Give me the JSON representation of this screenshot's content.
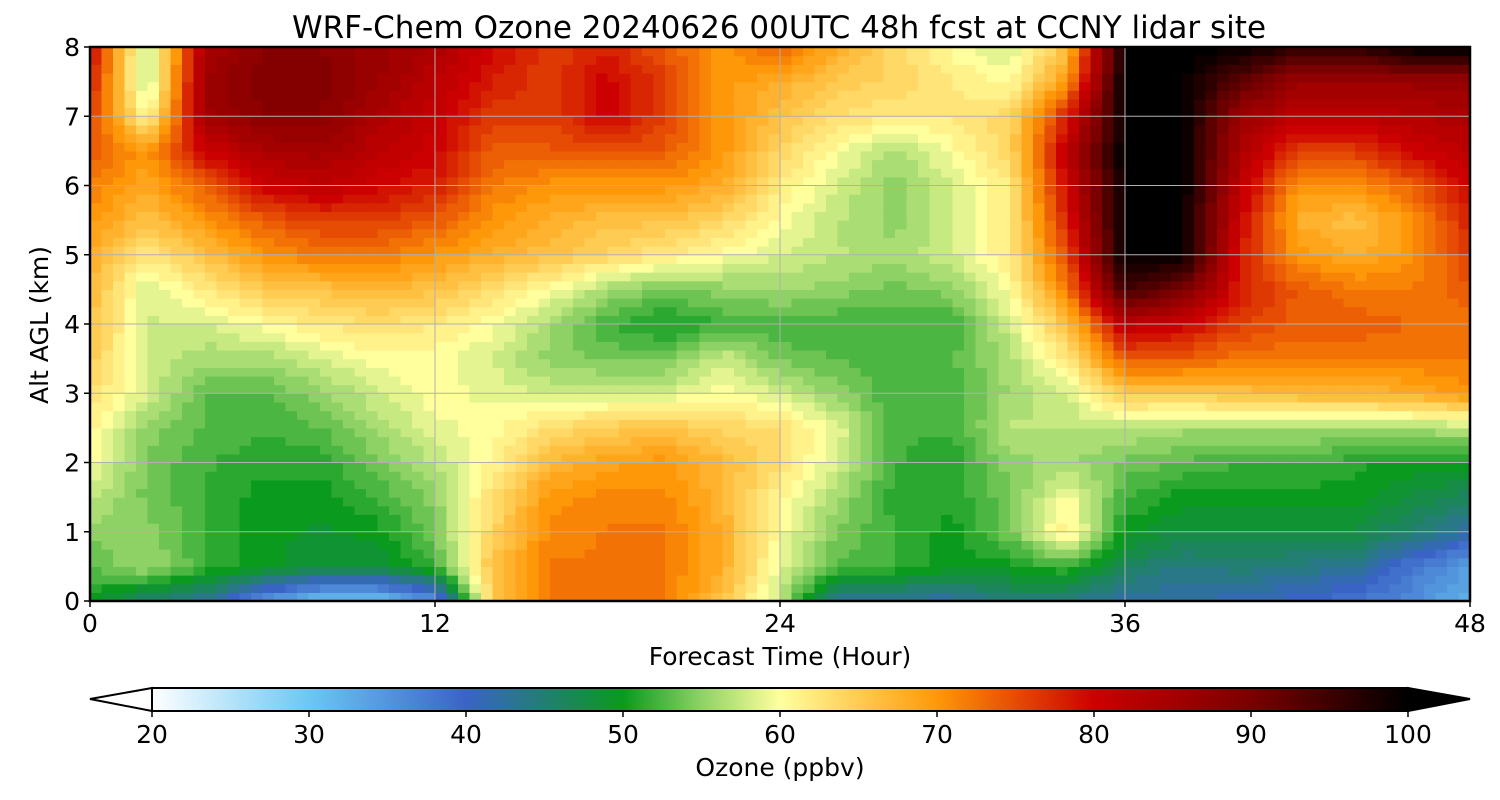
{
  "chart_data": {
    "type": "heatmap",
    "title": "WRF-Chem Ozone  20240626 00UTC 48h fcst at CCNY lidar site",
    "xlabel": "Forecast Time (Hour)",
    "ylabel": "Alt AGL (km)",
    "xlim": [
      0,
      48
    ],
    "ylim": [
      0,
      8
    ],
    "xticks": [
      "0",
      "12",
      "24",
      "36",
      "48"
    ],
    "yticks": [
      "0",
      "1",
      "2",
      "3",
      "4",
      "5",
      "6",
      "7",
      "8"
    ],
    "grid": true,
    "colorbar": {
      "label": "Ozone  (ppbv)",
      "min": 20,
      "max": 100,
      "extend": "both",
      "ticks": [
        "20",
        "30",
        "40",
        "50",
        "60",
        "70",
        "80",
        "90",
        "100"
      ]
    },
    "colormap_stops": [
      {
        "v": 20,
        "color": "#ffffff"
      },
      {
        "v": 30,
        "color": "#6cc7f3"
      },
      {
        "v": 40,
        "color": "#3a63c6"
      },
      {
        "v": 50,
        "color": "#0a9a1e"
      },
      {
        "v": 55,
        "color": "#8ed265"
      },
      {
        "v": 60,
        "color": "#ffff9e"
      },
      {
        "v": 70,
        "color": "#ff9808"
      },
      {
        "v": 80,
        "color": "#cc0000"
      },
      {
        "v": 90,
        "color": "#7a0000"
      },
      {
        "v": 100,
        "color": "#000000"
      }
    ],
    "x_hours": [
      0,
      2,
      4,
      6,
      8,
      10,
      12,
      14,
      16,
      18,
      20,
      22,
      24,
      26,
      28,
      30,
      32,
      34,
      36,
      38,
      40,
      42,
      44,
      46,
      48
    ],
    "z_km": [
      0,
      0.5,
      1,
      1.5,
      2,
      2.5,
      3,
      3.5,
      4,
      4.5,
      5,
      5.5,
      6,
      6.5,
      7,
      7.5,
      8
    ],
    "values": [
      [
        50,
        45,
        43,
        35,
        30,
        30,
        35,
        65,
        72,
        72,
        72,
        66,
        57,
        42,
        42,
        42,
        45,
        44,
        42,
        42,
        41,
        40,
        38,
        36,
        32
      ],
      [
        53,
        56,
        52,
        50,
        48,
        48,
        52,
        66,
        72,
        72,
        72,
        68,
        59,
        53,
        52,
        50,
        50,
        52,
        46,
        44,
        45,
        44,
        43,
        38,
        34
      ],
      [
        55,
        55,
        52,
        50,
        49,
        50,
        54,
        64,
        71,
        72,
        72,
        68,
        60,
        54,
        52,
        50,
        54,
        62,
        50,
        48,
        48,
        48,
        48,
        45,
        42
      ],
      [
        57,
        54,
        52,
        50,
        50,
        52,
        55,
        63,
        70,
        71,
        71,
        67,
        61,
        56,
        51,
        51,
        54,
        60,
        52,
        50,
        50,
        50,
        50,
        48,
        46
      ],
      [
        60,
        54,
        52,
        51,
        51,
        54,
        57,
        61,
        67,
        69,
        70,
        67,
        63,
        58,
        52,
        51,
        55,
        56,
        54,
        53,
        52,
        52,
        51,
        50,
        50
      ],
      [
        61,
        55,
        53,
        52,
        53,
        56,
        59,
        60,
        63,
        65,
        66,
        64,
        63,
        59,
        52,
        52,
        57,
        57,
        57,
        56,
        56,
        56,
        56,
        56,
        57
      ],
      [
        63,
        58,
        53,
        53,
        55,
        58,
        60,
        59,
        58,
        58,
        58,
        60,
        58,
        55,
        52,
        52,
        56,
        58,
        65,
        65,
        66,
        67,
        67,
        68,
        70
      ],
      [
        65,
        58,
        56,
        56,
        58,
        60,
        60,
        58,
        55,
        54,
        54,
        58,
        54,
        53,
        52,
        53,
        56,
        62,
        74,
        74,
        72,
        72,
        72,
        72,
        72
      ],
      [
        66,
        58,
        58,
        60,
        62,
        63,
        62,
        60,
        56,
        52,
        50,
        52,
        52,
        52,
        52,
        52,
        58,
        66,
        82,
        80,
        76,
        74,
        74,
        73,
        72
      ],
      [
        67,
        58,
        62,
        65,
        66,
        67,
        66,
        63,
        60,
        56,
        54,
        55,
        56,
        55,
        54,
        55,
        60,
        72,
        95,
        90,
        78,
        74,
        72,
        72,
        74
      ],
      [
        68,
        62,
        66,
        70,
        72,
        72,
        70,
        68,
        66,
        64,
        62,
        60,
        58,
        57,
        56,
        58,
        62,
        75,
        100,
        100,
        78,
        70,
        68,
        70,
        76
      ],
      [
        70,
        66,
        70,
        74,
        76,
        76,
        74,
        70,
        68,
        66,
        66,
        64,
        60,
        57,
        55,
        58,
        62,
        78,
        100,
        100,
        80,
        68,
        66,
        70,
        78
      ],
      [
        72,
        68,
        74,
        80,
        82,
        80,
        78,
        72,
        70,
        70,
        70,
        68,
        62,
        58,
        55,
        58,
        62,
        80,
        100,
        100,
        82,
        70,
        70,
        74,
        80
      ],
      [
        74,
        70,
        80,
        84,
        85,
        82,
        80,
        74,
        74,
        75,
        74,
        70,
        64,
        60,
        56,
        60,
        64,
        82,
        100,
        100,
        84,
        76,
        76,
        80,
        82
      ],
      [
        76,
        60,
        85,
        88,
        88,
        84,
        81,
        76,
        76,
        80,
        76,
        70,
        66,
        63,
        62,
        62,
        64,
        78,
        100,
        100,
        86,
        82,
        82,
        83,
        84
      ],
      [
        78,
        56,
        86,
        89,
        89,
        86,
        82,
        78,
        76,
        80,
        76,
        70,
        68,
        65,
        64,
        62,
        60,
        70,
        100,
        100,
        92,
        86,
        86,
        86,
        86
      ],
      [
        80,
        56,
        84,
        88,
        88,
        86,
        84,
        80,
        76,
        78,
        74,
        70,
        74,
        68,
        64,
        60,
        58,
        66,
        100,
        100,
        100,
        96,
        96,
        100,
        100
      ]
    ]
  }
}
